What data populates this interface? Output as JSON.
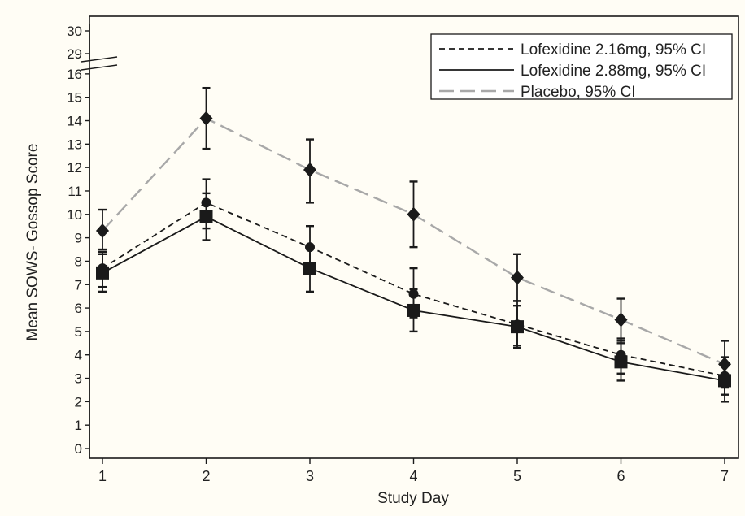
{
  "colors": {
    "background": "#fffdf5",
    "ink": "#1a1a1a",
    "placebo": "#a8a8a8"
  },
  "chart_data": {
    "type": "line",
    "xlabel": "Study Day",
    "ylabel": "Mean SOWS- Gossop Score",
    "x": [
      1,
      2,
      3,
      4,
      5,
      6,
      7
    ],
    "x_ticks": [
      "1",
      "2",
      "3",
      "4",
      "5",
      "6",
      "7"
    ],
    "y_ticks": [
      "0",
      "1",
      "2",
      "3",
      "4",
      "5",
      "6",
      "7",
      "8",
      "9",
      "10",
      "11",
      "12",
      "13",
      "14",
      "15",
      "16",
      "29",
      "30"
    ],
    "ylim": [
      0,
      30
    ],
    "y_axis_break": [
      16,
      29
    ],
    "grid": false,
    "legend_position": "top-right",
    "series": [
      {
        "name": "Lofexidine 2.16mg, 95% CI",
        "line_style": "short-dash",
        "color": "#1a1a1a",
        "values": [
          7.7,
          10.5,
          8.6,
          6.6,
          5.3,
          4.0,
          3.1
        ],
        "ci_low": [
          6.9,
          9.4,
          7.6,
          5.6,
          4.4,
          3.2,
          2.3
        ],
        "ci_high": [
          8.4,
          11.5,
          9.5,
          7.7,
          6.3,
          4.7,
          3.9
        ]
      },
      {
        "name": "Lofexidine 2.88mg, 95% CI",
        "line_style": "solid",
        "color": "#1a1a1a",
        "values": [
          7.5,
          9.9,
          7.7,
          5.9,
          5.2,
          3.7,
          2.9
        ],
        "ci_low": [
          6.7,
          8.9,
          6.7,
          5.0,
          4.3,
          2.9,
          2.0
        ],
        "ci_high": [
          8.3,
          10.9,
          8.6,
          6.8,
          6.1,
          4.6,
          3.9
        ]
      },
      {
        "name": "Placebo, 95% CI",
        "line_style": "long-dash",
        "color": "#a8a8a8",
        "values": [
          9.3,
          14.1,
          11.9,
          10.0,
          7.3,
          5.5,
          3.6
        ],
        "ci_low": [
          8.5,
          12.8,
          10.5,
          8.6,
          6.3,
          4.5,
          2.6
        ],
        "ci_high": [
          10.2,
          15.4,
          13.2,
          11.4,
          8.3,
          6.4,
          4.6
        ]
      }
    ]
  }
}
